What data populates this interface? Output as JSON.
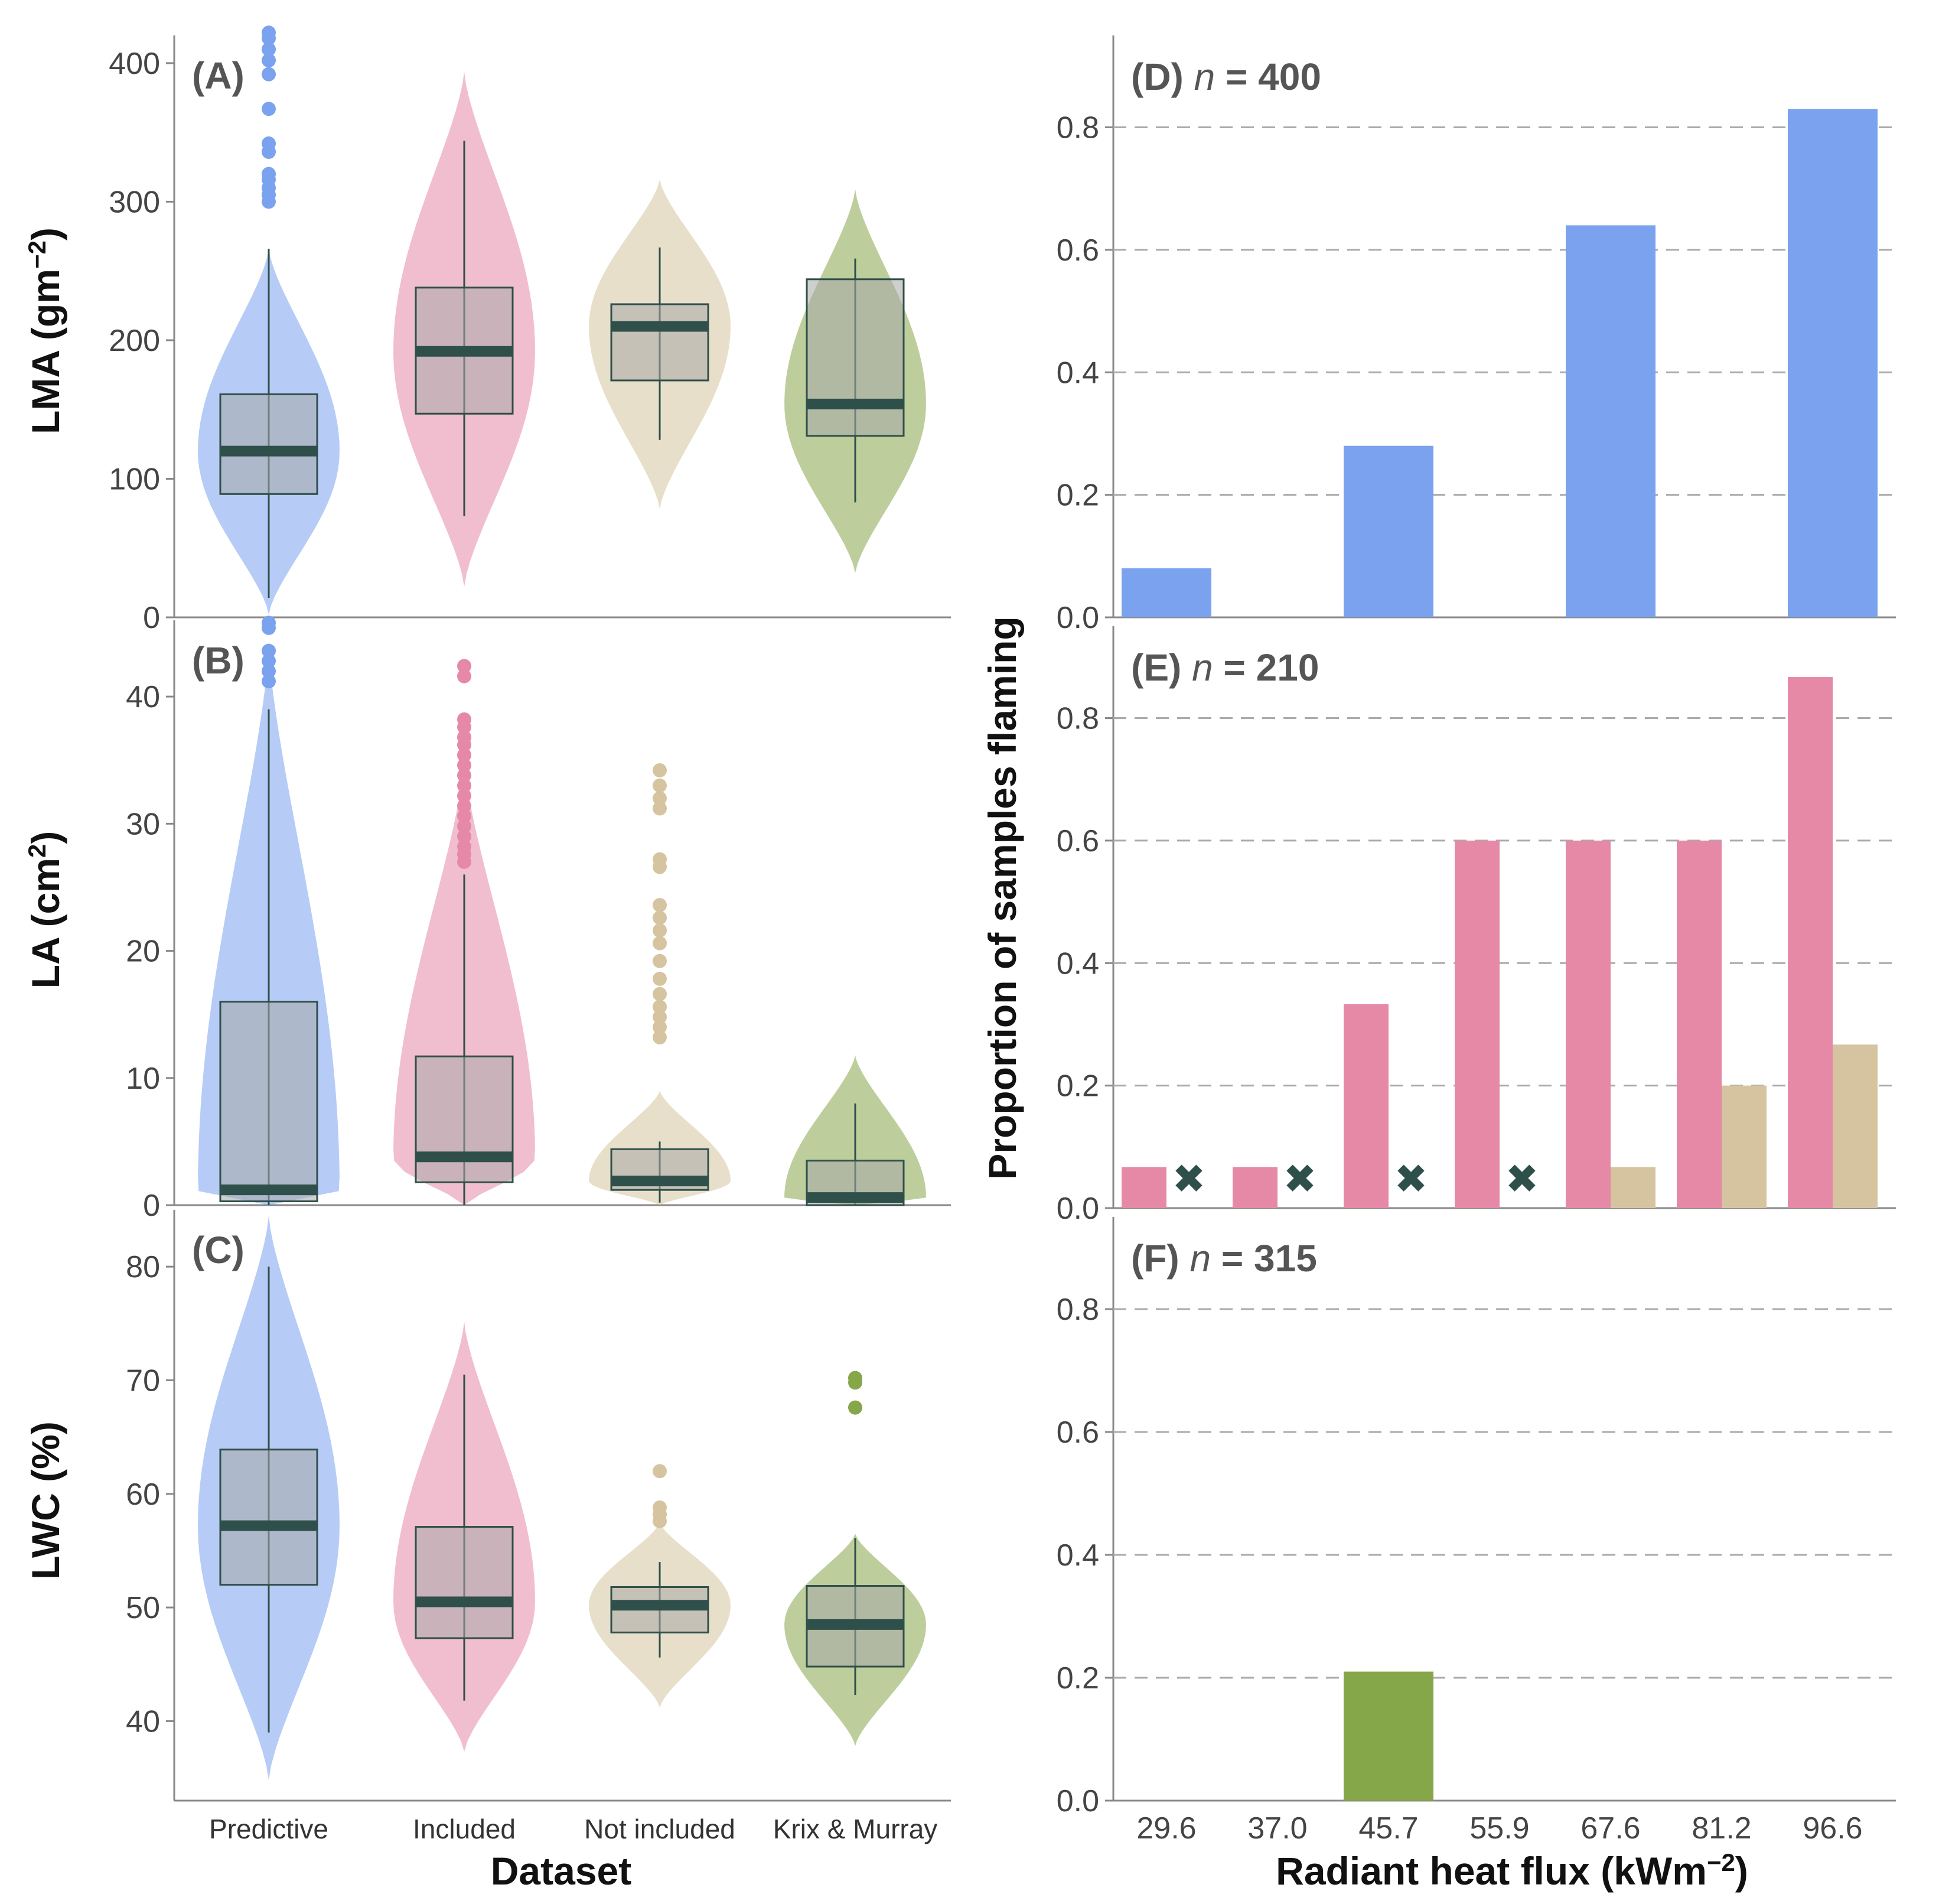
{
  "colors": {
    "predictive": "#7aa2ee",
    "included": "#e589a7",
    "not_included": "#d6c4a1",
    "krix_murray": "#86a64a",
    "box_fill": "#a8a8a8",
    "box_line": "#2f4f4a",
    "axis": "#888888",
    "grid": "#aaaaaa",
    "marker": "#2f4f4a"
  },
  "chart_data": [
    {
      "id": "A",
      "type": "box-violin",
      "label": "(A)",
      "ylabel_main": "LMA",
      "ylabel_units": "(gm",
      "ylabel_sup": "−2",
      "ylabel_close": ")",
      "ylim": [
        0,
        420
      ],
      "yticks": [
        "0",
        "100",
        "200",
        "300",
        "400"
      ],
      "categories": [
        "Predictive",
        "Included",
        "Not included",
        "Krix & Murray"
      ],
      "boxes": [
        {
          "q1": 89,
          "median": 120,
          "q3": 161,
          "whisker_low": 14,
          "whisker_high": 266,
          "violin_min": 2,
          "violin_max": 266,
          "outliers": [
            300,
            305,
            310,
            316,
            320,
            336,
            342,
            367,
            392,
            402,
            410,
            418,
            422
          ]
        },
        {
          "q1": 147,
          "median": 192,
          "q3": 238,
          "whisker_low": 73,
          "whisker_high": 344,
          "violin_min": 22,
          "violin_max": 394,
          "outliers": []
        },
        {
          "q1": 171,
          "median": 210,
          "q3": 226,
          "whisker_low": 128,
          "whisker_high": 267,
          "violin_min": 78,
          "violin_max": 316,
          "outliers": []
        },
        {
          "q1": 131,
          "median": 154,
          "q3": 244,
          "whisker_low": 83,
          "whisker_high": 259,
          "violin_min": 32,
          "violin_max": 309,
          "outliers": []
        }
      ]
    },
    {
      "id": "B",
      "type": "box-violin",
      "label": "(B)",
      "ylabel_main": "LA",
      "ylabel_units": "(cm",
      "ylabel_sup": "2",
      "ylabel_close": ")",
      "ylim": [
        0,
        46
      ],
      "yticks": [
        "0",
        "10",
        "20",
        "30",
        "40"
      ],
      "categories": [
        "Predictive",
        "Included",
        "Not included",
        "Krix & Murray"
      ],
      "boxes": [
        {
          "q1": 0.3,
          "median": 1.2,
          "q3": 16,
          "whisker_low": 0,
          "whisker_high": 39,
          "violin_min": 0,
          "violin_max": 44,
          "outliers": [
            41.2,
            42,
            42.8,
            43.6,
            45.4,
            45.8
          ]
        },
        {
          "q1": 1.8,
          "median": 3.8,
          "q3": 11.7,
          "whisker_low": 0,
          "whisker_high": 26,
          "violin_min": 0,
          "violin_max": 35,
          "outliers": [
            27,
            27.6,
            28.2,
            29,
            29.8,
            30.6,
            31.4,
            32.2,
            33,
            33.8,
            34.6,
            35.4,
            36.2,
            36.8,
            37.6,
            38.2,
            41.6,
            42.4
          ]
        },
        {
          "q1": 1.2,
          "median": 1.9,
          "q3": 4.4,
          "whisker_low": 0.2,
          "whisker_high": 5,
          "violin_min": 0,
          "violin_max": 9,
          "outliers": [
            13.2,
            14,
            14.8,
            15.6,
            16.6,
            17.8,
            19.2,
            20.6,
            21.6,
            22.6,
            23.6,
            26.6,
            27.2,
            31.2,
            32,
            33,
            34.2
          ]
        },
        {
          "q1": 0,
          "median": 0.6,
          "q3": 3.5,
          "whisker_low": 0,
          "whisker_high": 8,
          "violin_min": 0,
          "violin_max": 11.8,
          "outliers": []
        }
      ]
    },
    {
      "id": "C",
      "type": "box-violin",
      "label": "(C)",
      "ylabel_main": "LWC (%)",
      "ylabel_units": "",
      "ylabel_sup": "",
      "ylabel_close": "",
      "ylim": [
        33,
        85
      ],
      "yticks": [
        "40",
        "50",
        "60",
        "70",
        "80"
      ],
      "categories": [
        "Predictive",
        "Included",
        "Not included",
        "Krix & Murray"
      ],
      "boxes": [
        {
          "q1": 52,
          "median": 57.2,
          "q3": 63.9,
          "whisker_low": 39,
          "whisker_high": 80,
          "violin_min": 34.8,
          "violin_max": 84.5,
          "outliers": []
        },
        {
          "q1": 47.3,
          "median": 50.5,
          "q3": 57.1,
          "whisker_low": 41.8,
          "whisker_high": 70.5,
          "violin_min": 37.3,
          "violin_max": 75.2,
          "outliers": []
        },
        {
          "q1": 47.8,
          "median": 50.2,
          "q3": 51.8,
          "whisker_low": 45.6,
          "whisker_high": 54,
          "violin_min": 41.2,
          "violin_max": 57.5,
          "outliers": [
            57.6,
            58.2,
            58.8,
            62
          ]
        },
        {
          "q1": 44.8,
          "median": 48.5,
          "q3": 51.9,
          "whisker_low": 42.3,
          "whisker_high": 56.1,
          "violin_min": 37.8,
          "violin_max": 56.5,
          "outliers": [
            67.6,
            69.8,
            70.2
          ]
        }
      ]
    },
    {
      "id": "D",
      "type": "bar",
      "label": "(D)",
      "n_text": "n",
      "n_value": "= 400",
      "ylim": [
        0,
        0.95
      ],
      "yticks": [
        "0.0",
        "0.2",
        "0.4",
        "0.6",
        "0.8"
      ],
      "categories": [
        "29.6",
        "37.0",
        "45.7",
        "55.9",
        "67.6",
        "81.2",
        "96.6"
      ],
      "series": [
        {
          "name": "Predictive",
          "values": [
            0.08,
            null,
            0.28,
            null,
            0.64,
            null,
            0.83
          ]
        }
      ]
    },
    {
      "id": "E",
      "type": "bar",
      "label": "(E)",
      "n_text": "n",
      "n_value": "= 210",
      "ylim": [
        0,
        0.95
      ],
      "yticks": [
        "0.0",
        "0.2",
        "0.4",
        "0.6",
        "0.8"
      ],
      "categories": [
        "29.6",
        "37.0",
        "45.7",
        "55.9",
        "67.6",
        "81.2",
        "96.6"
      ],
      "series": [
        {
          "name": "Included",
          "values": [
            0.067,
            0.067,
            0.333,
            0.6,
            0.6,
            0.6,
            0.867
          ]
        },
        {
          "name": "Not included",
          "values": [
            null,
            null,
            null,
            null,
            0.067,
            0.2,
            0.267
          ]
        }
      ],
      "markers": [
        "29.6",
        "37.0",
        "45.7",
        "55.9"
      ],
      "marker_symbol": "✖"
    },
    {
      "id": "F",
      "type": "bar",
      "label": "(F)",
      "n_text": "n",
      "n_value": "= 315",
      "ylim": [
        0,
        0.95
      ],
      "yticks": [
        "0.0",
        "0.2",
        "0.4",
        "0.6",
        "0.8"
      ],
      "categories": [
        "29.6",
        "37.0",
        "45.7",
        "55.9",
        "67.6",
        "81.2",
        "96.6"
      ],
      "series": [
        {
          "name": "Krix & Murray",
          "values": [
            null,
            null,
            0.21,
            null,
            null,
            null,
            null
          ]
        }
      ]
    }
  ],
  "axes": {
    "left_xlabel": "Dataset",
    "right_ylabel": "Proportion of samples flaming",
    "right_xlabel_main": "Radiant heat flux",
    "right_xlabel_units": "(kWm",
    "right_xlabel_sup": "−2",
    "right_xlabel_close": ")"
  }
}
